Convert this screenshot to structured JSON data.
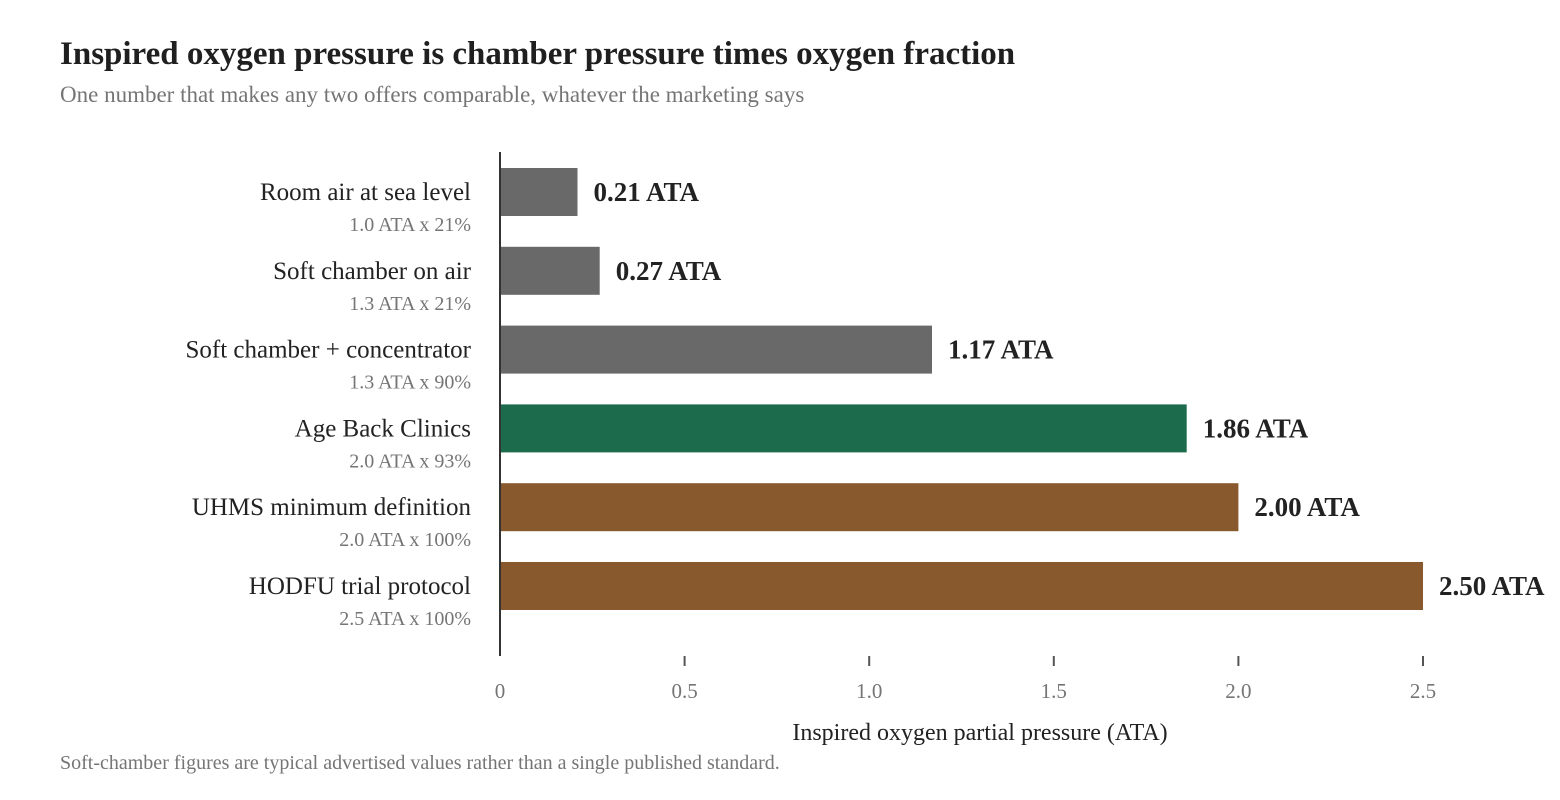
{
  "header": {
    "title": "Inspired oxygen pressure is chamber pressure times oxygen fraction",
    "subtitle": "One number that makes any two offers comparable, whatever the marketing says"
  },
  "footnote": "Soft-chamber figures are typical advertised values rather than a single published standard.",
  "chart_data": {
    "type": "bar",
    "orientation": "horizontal",
    "title": "Inspired oxygen pressure is chamber pressure times oxygen fraction",
    "subtitle": "One number that makes any two offers comparable, whatever the marketing says",
    "xlabel": "Inspired oxygen partial pressure (ATA)",
    "ylabel": "",
    "xlim": [
      0,
      2.5
    ],
    "xticks": [
      0,
      0.5,
      1.0,
      1.5,
      2.0,
      2.5
    ],
    "xtick_labels": [
      "0",
      "0.5",
      "1.0",
      "1.5",
      "2.0",
      "2.5"
    ],
    "grid": false,
    "categories": [
      "Room air at sea level",
      "Soft chamber on air",
      "Soft chamber + concentrator",
      "Age Back Clinics",
      "UHMS minimum definition",
      "HODFU trial protocol"
    ],
    "sublabels": [
      "1.0 ATA x 21%",
      "1.3 ATA x 21%",
      "1.3 ATA x 90%",
      "2.0 ATA x 93%",
      "2.0 ATA x 100%",
      "2.5 ATA x 100%"
    ],
    "values": [
      0.21,
      0.27,
      1.17,
      1.86,
      2.0,
      2.5
    ],
    "value_labels": [
      "0.21 ATA",
      "0.27 ATA",
      "1.17 ATA",
      "1.86 ATA",
      "2.00 ATA",
      "2.50 ATA"
    ],
    "bar_colors": [
      "#696969",
      "#696969",
      "#696969",
      "#1c6b4c",
      "#88592d",
      "#88592d"
    ],
    "colors": {
      "gray": "#696969",
      "highlight_green": "#1c6b4c",
      "reference_brown": "#88592d",
      "axis": "#333333",
      "label_text": "#222222",
      "sublabel_text": "#757575"
    }
  }
}
